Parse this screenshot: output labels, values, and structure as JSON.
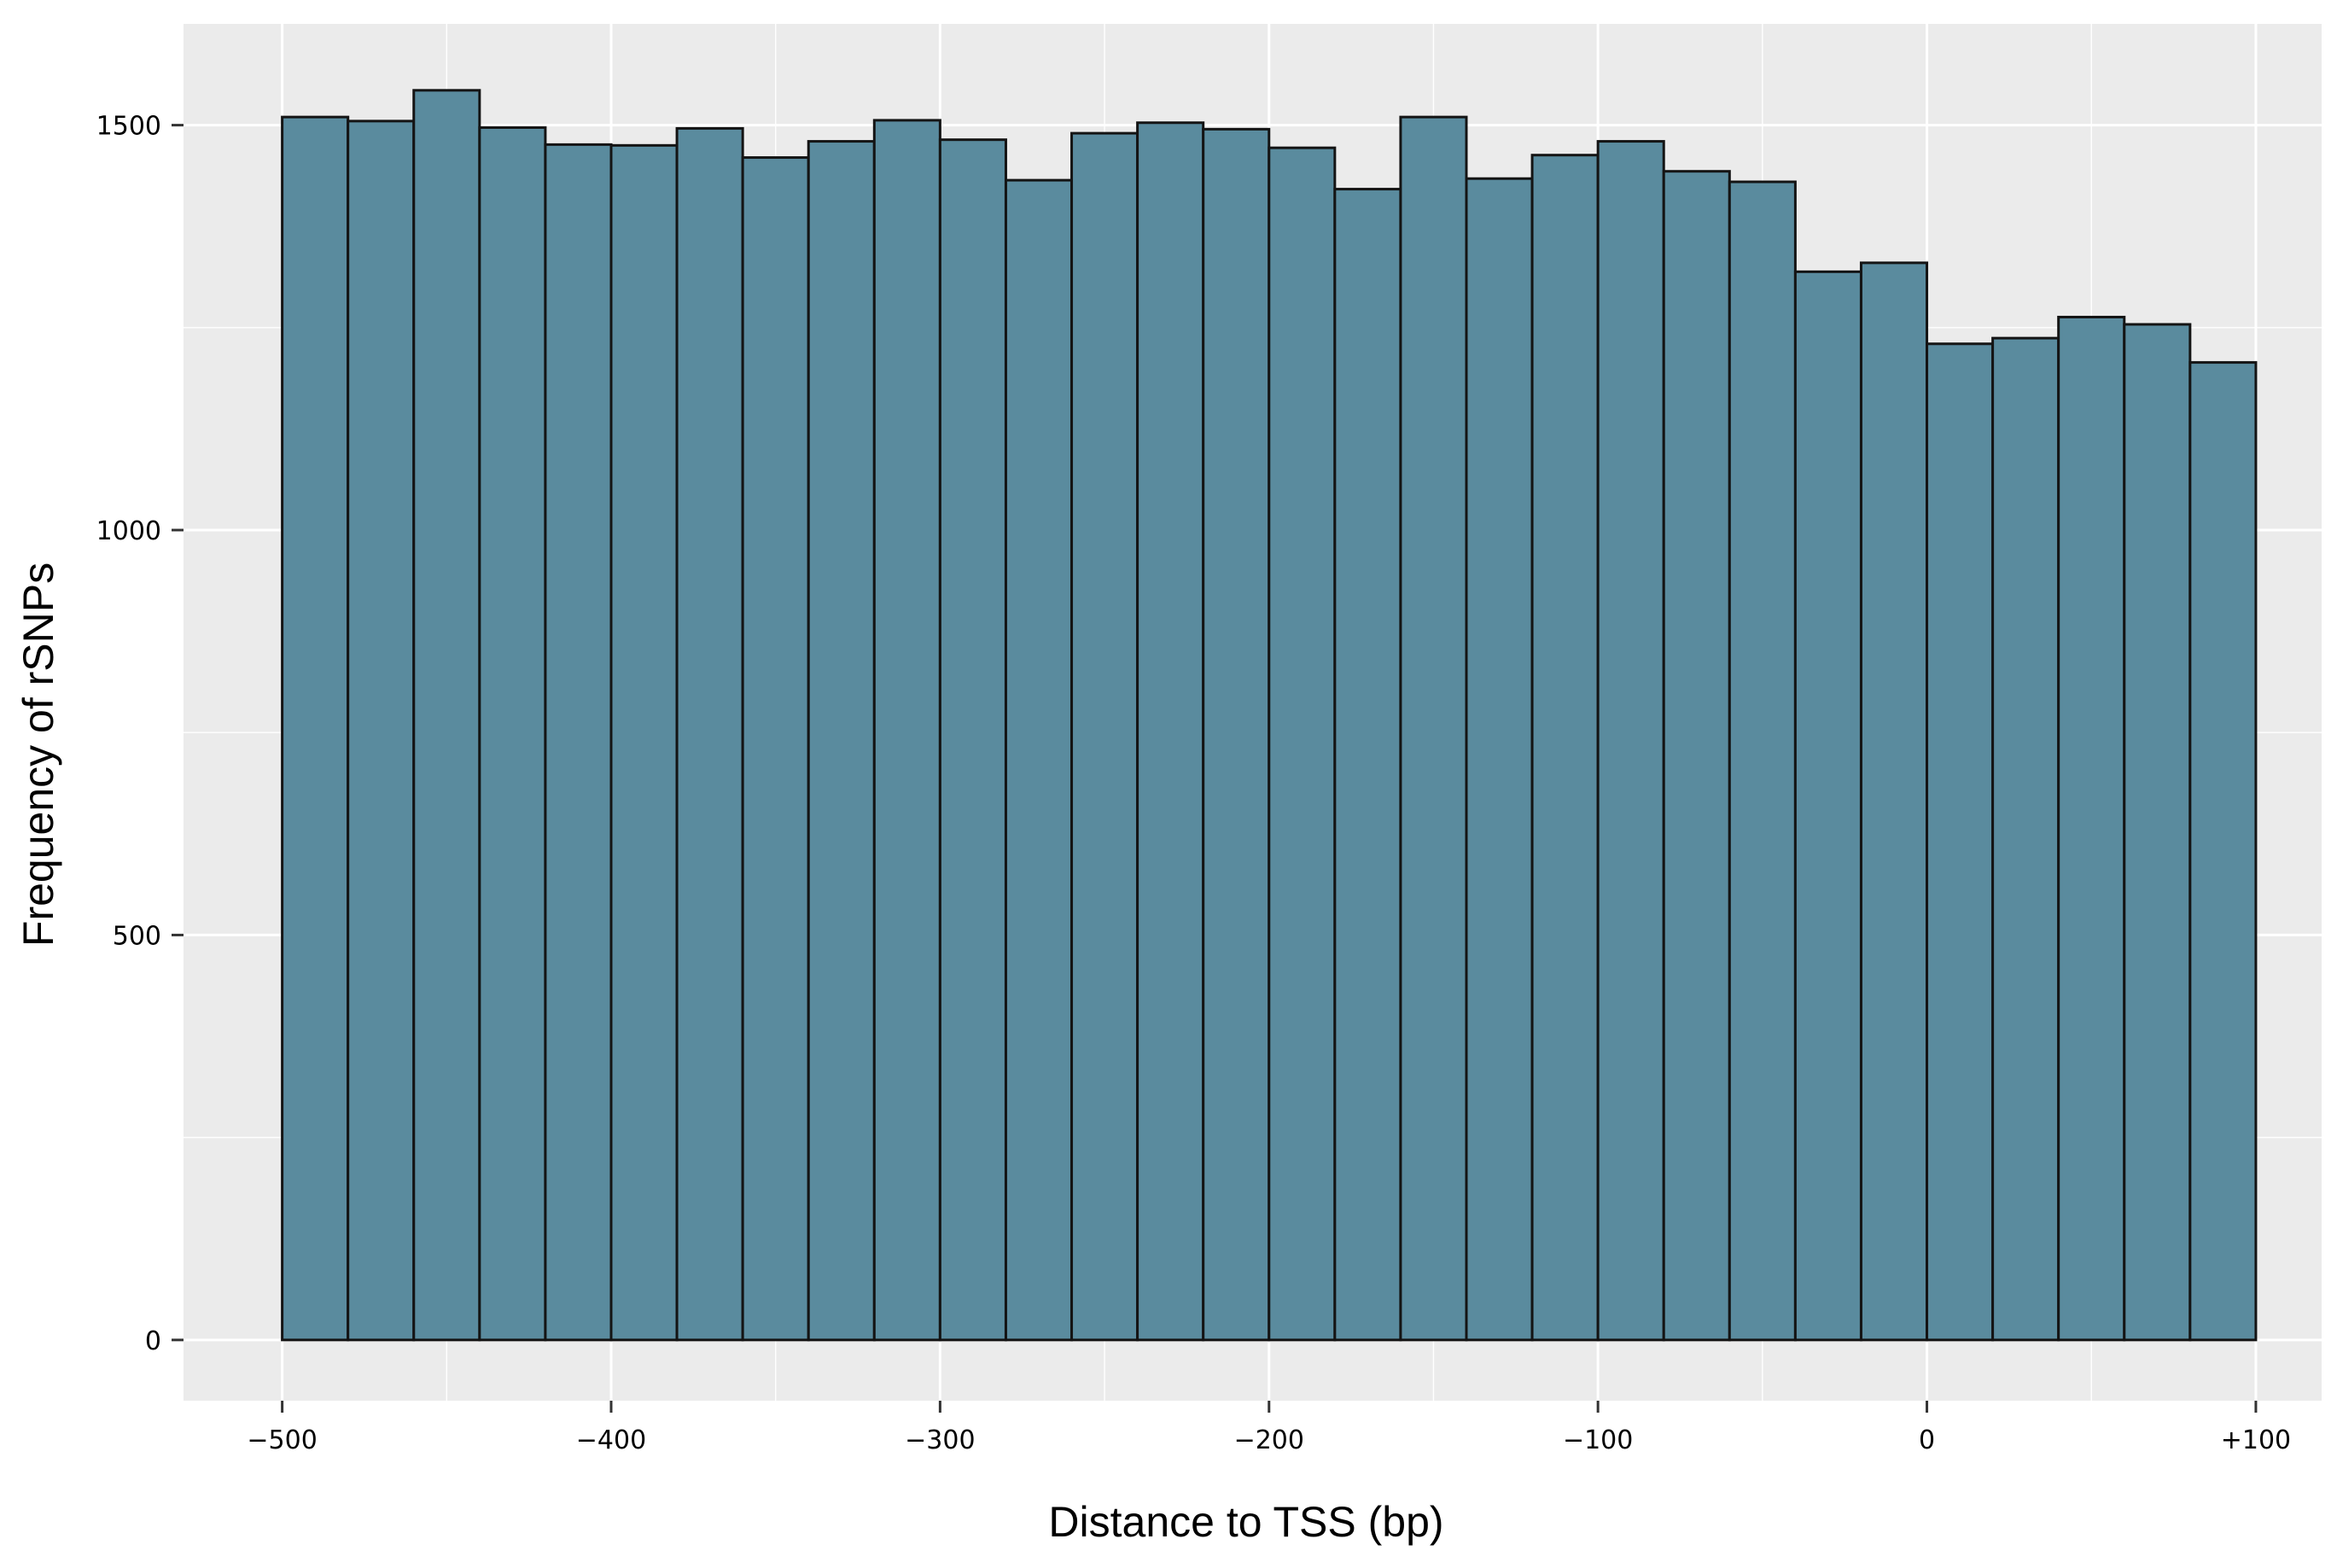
{
  "chart_data": {
    "type": "bar",
    "title": "",
    "xlabel": "Distance to TSS (bp)",
    "ylabel": "Frequency of rSNPs",
    "xlim": [
      -530,
      120
    ],
    "ylim": [
      -75,
      1625
    ],
    "x_ticks": [
      -500,
      -400,
      -300,
      -200,
      -100,
      0,
      100
    ],
    "x_tick_labels": [
      "−500",
      "−400",
      "−300",
      "−200",
      "−100",
      "0",
      "+100"
    ],
    "y_ticks": [
      0,
      500,
      1000,
      1500
    ],
    "y_tick_labels": [
      "0",
      "500",
      "1000",
      "1500"
    ],
    "grid": true,
    "bin_width": 20,
    "bin_starts": [
      -500,
      -480,
      -460,
      -440,
      -420,
      -400,
      -380,
      -360,
      -340,
      -320,
      -300,
      -280,
      -260,
      -240,
      -220,
      -200,
      -180,
      -160,
      -140,
      -120,
      -100,
      -80,
      -60,
      -40,
      -20,
      0,
      20,
      40,
      60,
      80
    ],
    "values": [
      1510,
      1505,
      1543,
      1497,
      1476,
      1475,
      1496,
      1460,
      1480,
      1506,
      1482,
      1432,
      1490,
      1503,
      1495,
      1472,
      1421,
      1510,
      1434,
      1463,
      1480,
      1443,
      1430,
      1319,
      1330,
      1230,
      1237,
      1263,
      1254,
      1207
    ],
    "colors": {
      "bar_fill": "#5a8b9e",
      "bar_edge": "#141414",
      "panel_bg": "#ebebeb",
      "grid": "#ffffff"
    }
  }
}
